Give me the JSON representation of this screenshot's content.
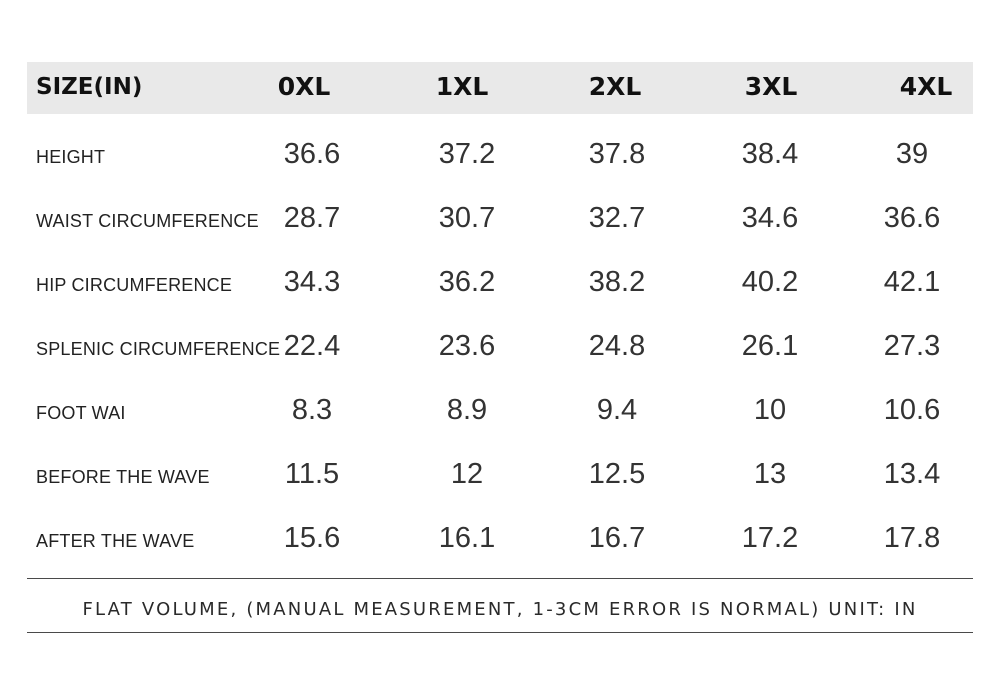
{
  "table": {
    "corner_label": "SIZE(IN)",
    "sizes": [
      "0XL",
      "1XL",
      "2XL",
      "3XL",
      "4XL"
    ],
    "rows": [
      {
        "label": "HEIGHT",
        "values": [
          "36.6",
          "37.2",
          "37.8",
          "38.4",
          "39"
        ]
      },
      {
        "label": "WAIST CIRCUMFERENCE",
        "values": [
          "28.7",
          "30.7",
          "32.7",
          "34.6",
          "36.6"
        ]
      },
      {
        "label": "HIP CIRCUMFERENCE",
        "values": [
          "34.3",
          "36.2",
          "38.2",
          "40.2",
          "42.1"
        ]
      },
      {
        "label": "SPLENIC CIRCUMFERENCE",
        "values": [
          "22.4",
          "23.6",
          "24.8",
          "26.1",
          "27.3"
        ]
      },
      {
        "label": "FOOT WAI",
        "values": [
          "8.3",
          "8.9",
          "9.4",
          "10",
          "10.6"
        ]
      },
      {
        "label": "BEFORE THE WAVE",
        "values": [
          "11.5",
          "12",
          "12.5",
          "13",
          "13.4"
        ]
      },
      {
        "label": "AFTER THE WAVE",
        "values": [
          "15.6",
          "16.1",
          "16.7",
          "17.2",
          "17.8"
        ]
      }
    ]
  },
  "footnote": "FLAT VOLUME, (MANUAL MEASUREMENT, 1-3CM ERROR IS NORMAL) UNIT: IN",
  "colors": {
    "header_background": "#e9e9e9",
    "text": "#2a2a2a",
    "rule": "#4a4a4a"
  }
}
